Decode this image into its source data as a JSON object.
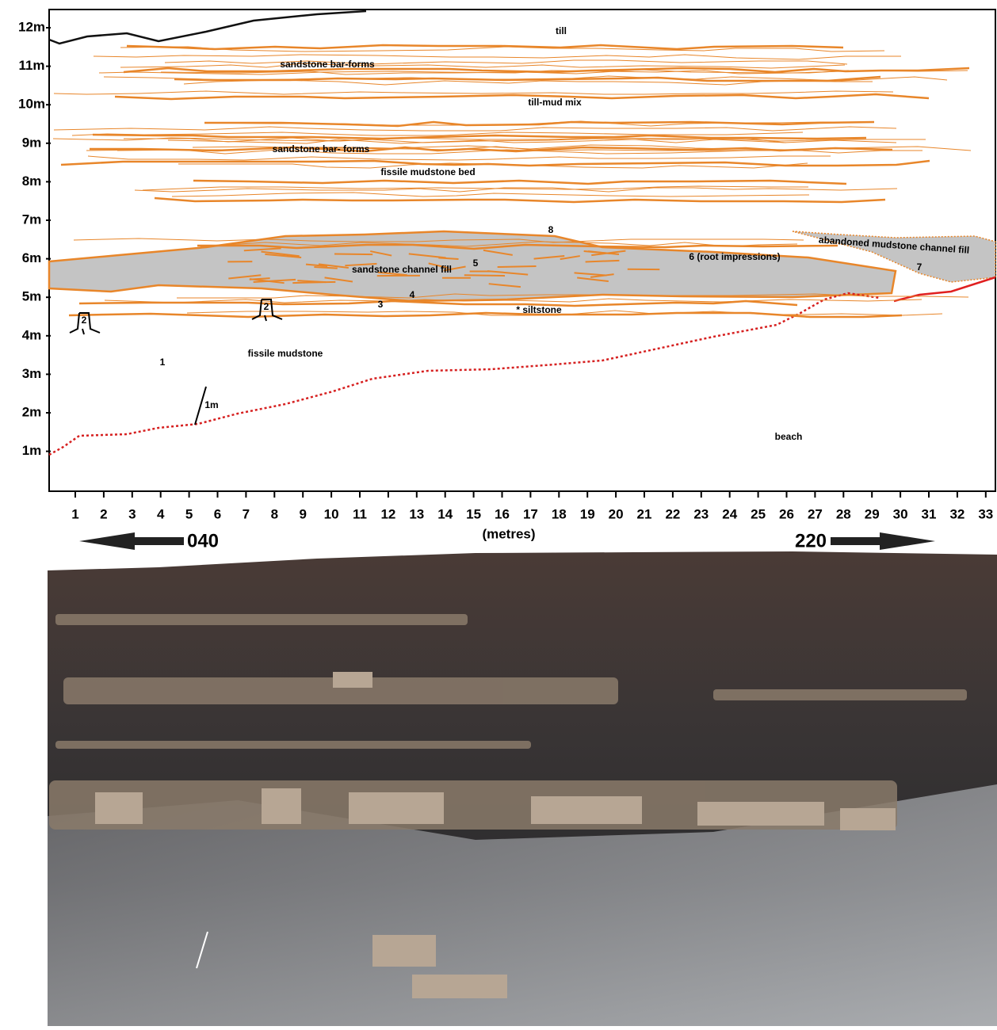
{
  "diagram": {
    "y_axis_labels": [
      "12m",
      "11m",
      "10m",
      "9m",
      "8m",
      "7m",
      "6m",
      "5m",
      "4m",
      "3m",
      "2m",
      "1m"
    ],
    "x_axis_labels": [
      1,
      2,
      3,
      4,
      5,
      6,
      7,
      8,
      9,
      10,
      11,
      12,
      13,
      14,
      15,
      16,
      17,
      18,
      19,
      20,
      21,
      22,
      23,
      24,
      25,
      26,
      27,
      28,
      29,
      30,
      31,
      32,
      33
    ],
    "x_axis_title": "(metres)",
    "direction_left": "040",
    "direction_right": "220",
    "annotations": [
      "till",
      "sandstone bar-forms",
      "till-mud mix",
      "sandstone bar- forms",
      "fissile mudstone bed",
      "8",
      "abandoned mudstone channel fill",
      "7",
      "5",
      "6 (root impressions)",
      "sandstone channel fill",
      "4",
      "3",
      "* siltstone",
      "1",
      "fissile mudstone",
      "1m",
      "beach"
    ],
    "stump_labels": [
      "2",
      "2"
    ]
  }
}
